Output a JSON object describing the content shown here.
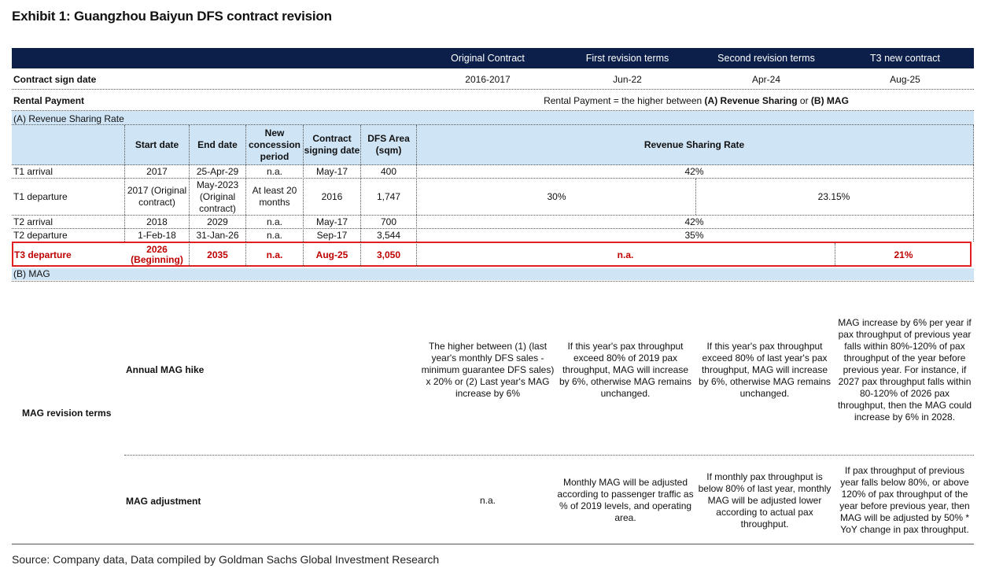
{
  "title": "Exhibit 1: Guangzhou Baiyun DFS contract revision",
  "columns": [
    "Original Contract",
    "First revision terms",
    "Second revision terms",
    "T3 new contract"
  ],
  "contract_sign_date": {
    "label": "Contract sign date",
    "values": [
      "2016-2017",
      "Jun-22",
      "Apr-24",
      "Aug-25"
    ]
  },
  "rental_payment": {
    "label": "Rental Payment",
    "text_prefix": "Rental Payment = the higher between ",
    "text_a": "(A) Revenue Sharing",
    "text_mid": " or ",
    "text_b": "(B) MAG"
  },
  "revenue_sharing": {
    "section_label": "(A) Revenue Sharing Rate",
    "headers": {
      "start_date": "Start date",
      "end_date": "End date",
      "new_concession": "New concession period",
      "contract_signing": "Contract signing date",
      "dfs_area": "DFS Area (sqm)",
      "rate": "Revenue Sharing Rate"
    },
    "rows": [
      {
        "name": "T1 arrival",
        "start": "2017",
        "end": "25-Apr-29",
        "period": "n.a.",
        "signing": "May-17",
        "area": "400",
        "rates": [
          "42%"
        ]
      },
      {
        "name": "T1 departure",
        "start": "2017 (Original contract)",
        "end": "May-2023 (Original contract)",
        "period": "At least 20 months",
        "signing": "2016",
        "area": "1,747",
        "rates": [
          "30%",
          "23.15%"
        ]
      },
      {
        "name": "T2 arrival",
        "start": "2018",
        "end": "2029",
        "period": "n.a.",
        "signing": "May-17",
        "area": "700",
        "rates": [
          "42%"
        ]
      },
      {
        "name": "T2 departure",
        "start": "1-Feb-18",
        "end": "31-Jan-26",
        "period": "n.a.",
        "signing": "Sep-17",
        "area": "3,544",
        "rates": [
          "35%"
        ]
      },
      {
        "name": "T3 departure",
        "start": "2026 (Beginning)",
        "end": "2035",
        "period": "n.a.",
        "signing": "Aug-25",
        "area": "3,050",
        "rates": [
          "n.a.",
          "21%"
        ]
      }
    ]
  },
  "mag": {
    "section_label": "(B) MAG",
    "group_label": "MAG revision terms",
    "annual_hike": {
      "label": "Annual MAG hike",
      "values": [
        "The higher between (1) (last year's monthly DFS sales - minimum guarantee DFS sales) x 20% or (2) Last year's MAG increase by 6%",
        "If this year's pax throughput exceed 80% of 2019 pax throughput, MAG will increase by 6%, otherwise MAG remains unchanged.",
        "If this year's pax throughput exceed 80% of last year's pax throughput, MAG will increase by 6%, otherwise MAG remains unchanged.",
        "MAG increase by 6% per year if pax throughput of previous year falls within 80%-120% of pax throughput of the year before previous year. For instance, if 2027 pax throughput falls within 80-120% of 2026 pax throughput, then the MAG could increase by 6% in 2028."
      ]
    },
    "adjustment": {
      "label": "MAG adjustment",
      "values": [
        "n.a.",
        "Monthly MAG will be adjusted according to passenger traffic as % of 2019 levels, and operating area.",
        "If monthly pax throughput is below 80% of last year, monthly MAG will be adjusted lower according to actual pax throughput.",
        "If pax throughput of previous year falls below 80%, or above 120% of pax throughput of the year before previous year, then MAG will be adjusted by 50% * YoY change in pax throughput."
      ]
    }
  },
  "source": "Source: Company data, Data compiled by Goldman Sachs Global Investment Research",
  "colors": {
    "header_bg": "#0b1f4a",
    "section_bg": "#cfe4f5",
    "highlight": "#e02020",
    "highlight_text": "#c00000"
  }
}
